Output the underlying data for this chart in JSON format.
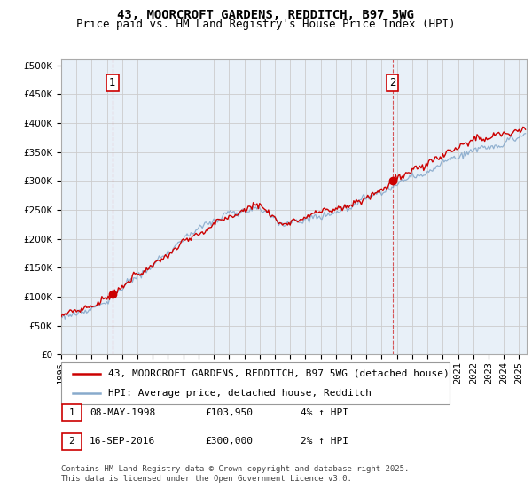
{
  "title": "43, MOORCROFT GARDENS, REDDITCH, B97 5WG",
  "subtitle": "Price paid vs. HM Land Registry's House Price Index (HPI)",
  "ylim": [
    0,
    510000
  ],
  "yticks": [
    0,
    50000,
    100000,
    150000,
    200000,
    250000,
    300000,
    350000,
    400000,
    450000,
    500000
  ],
  "xlim_start": 1995.0,
  "xlim_end": 2025.5,
  "legend_entry1": "43, MOORCROFT GARDENS, REDDITCH, B97 5WG (detached house)",
  "legend_entry2": "HPI: Average price, detached house, Redditch",
  "line1_color": "#cc0000",
  "line2_color": "#88aacc",
  "marker_color": "#cc0000",
  "grid_color": "#cccccc",
  "vline_color": "#cc0000",
  "sale1_x": 1998.36,
  "sale1_y": 103950,
  "sale1_label": "1",
  "sale2_x": 2016.71,
  "sale2_y": 300000,
  "sale2_label": "2",
  "table_rows": [
    {
      "num": "1",
      "date": "08-MAY-1998",
      "price": "£103,950",
      "hpi": "4% ↑ HPI"
    },
    {
      "num": "2",
      "date": "16-SEP-2016",
      "price": "£300,000",
      "hpi": "2% ↑ HPI"
    }
  ],
  "footnote": "Contains HM Land Registry data © Crown copyright and database right 2025.\nThis data is licensed under the Open Government Licence v3.0.",
  "title_fontsize": 10,
  "subtitle_fontsize": 9,
  "tick_fontsize": 7.5,
  "legend_fontsize": 8,
  "table_fontsize": 8,
  "footnote_fontsize": 6.5
}
